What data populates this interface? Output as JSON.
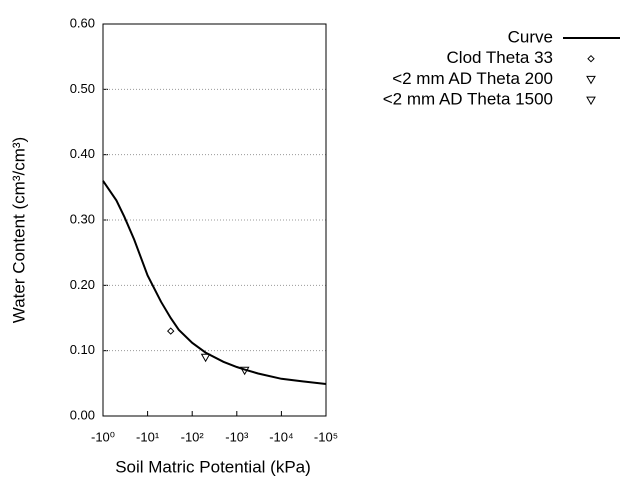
{
  "chart_data": {
    "type": "line",
    "x_label": "Soil Matric Potential (kPa)",
    "y_label": "Water Content (cm³/cm³)",
    "xscale": "log",
    "xlim": [
      -1,
      -100000
    ],
    "xticks": [
      {
        "value": -1,
        "label": "-10⁰"
      },
      {
        "value": -10,
        "label": "-10¹"
      },
      {
        "value": -100,
        "label": "-10²"
      },
      {
        "value": -1000,
        "label": "-10³"
      },
      {
        "value": -10000,
        "label": "-10⁴"
      },
      {
        "value": -100000,
        "label": "-10⁵"
      }
    ],
    "ylim": [
      0,
      0.6
    ],
    "yticks": [
      {
        "value": 0,
        "label": "0.00"
      },
      {
        "value": 0.1,
        "label": "0.10"
      },
      {
        "value": 0.2,
        "label": "0.20"
      },
      {
        "value": 0.3,
        "label": "0.30"
      },
      {
        "value": 0.4,
        "label": "0.40"
      },
      {
        "value": 0.5,
        "label": "0.50"
      },
      {
        "value": 0.6,
        "label": "0.60"
      }
    ],
    "grid": true,
    "legend": "outside-right",
    "series": [
      {
        "name": "Curve",
        "color": "#000000",
        "marker": "none",
        "x": [
          -1,
          -2,
          -3,
          -5,
          -10,
          -20,
          -33,
          -50,
          -100,
          -200,
          -500,
          -1000,
          -1500,
          -3000,
          -10000,
          -30000,
          -100000
        ],
        "values": [
          0.36,
          0.33,
          0.305,
          0.27,
          0.215,
          0.175,
          0.15,
          0.132,
          0.112,
          0.097,
          0.083,
          0.075,
          0.071,
          0.065,
          0.057,
          0.053,
          0.049
        ]
      },
      {
        "name": "Clod Theta 33",
        "color": "#000000",
        "marker": "diamond",
        "x": [
          -33
        ],
        "values": [
          0.13
        ]
      },
      {
        "name": "<2 mm AD Theta 200",
        "color": "#000000",
        "marker": "triangle-down",
        "x": [
          -200
        ],
        "values": [
          0.09
        ]
      },
      {
        "name": "<2 mm AD Theta 1500",
        "color": "#000000",
        "marker": "triangle-down",
        "x": [
          -1500
        ],
        "values": [
          0.07
        ]
      }
    ]
  }
}
